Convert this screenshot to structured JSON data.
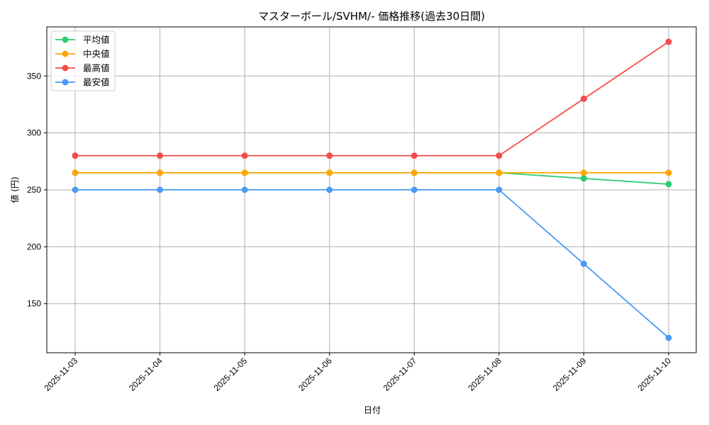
{
  "chart_data": {
    "type": "line",
    "title": "マスターボール/SVHM/- 価格推移(過去30日間)",
    "xlabel": "日付",
    "ylabel": "値 (円)",
    "categories": [
      "2025-11-03",
      "2025-11-04",
      "2025-11-05",
      "2025-11-06",
      "2025-11-07",
      "2025-11-08",
      "2025-11-09",
      "2025-11-10"
    ],
    "series": [
      {
        "name": "平均値",
        "color": "#2ecc71",
        "values": [
          265,
          265,
          265,
          265,
          265,
          265,
          260,
          255
        ]
      },
      {
        "name": "中央値",
        "color": "#ffa500",
        "values": [
          265,
          265,
          265,
          265,
          265,
          265,
          265,
          265
        ]
      },
      {
        "name": "最高値",
        "color": "#f44c4c",
        "values": [
          280,
          280,
          280,
          280,
          280,
          280,
          330,
          380
        ]
      },
      {
        "name": "最安値",
        "color": "#4a9af5",
        "values": [
          250,
          250,
          250,
          250,
          250,
          250,
          185,
          120
        ]
      }
    ],
    "yticks": [
      150,
      200,
      250,
      300,
      350
    ],
    "ylim": [
      106.9,
      393.1
    ],
    "grid": true,
    "legend_position": "upper left",
    "marker": "circle"
  }
}
